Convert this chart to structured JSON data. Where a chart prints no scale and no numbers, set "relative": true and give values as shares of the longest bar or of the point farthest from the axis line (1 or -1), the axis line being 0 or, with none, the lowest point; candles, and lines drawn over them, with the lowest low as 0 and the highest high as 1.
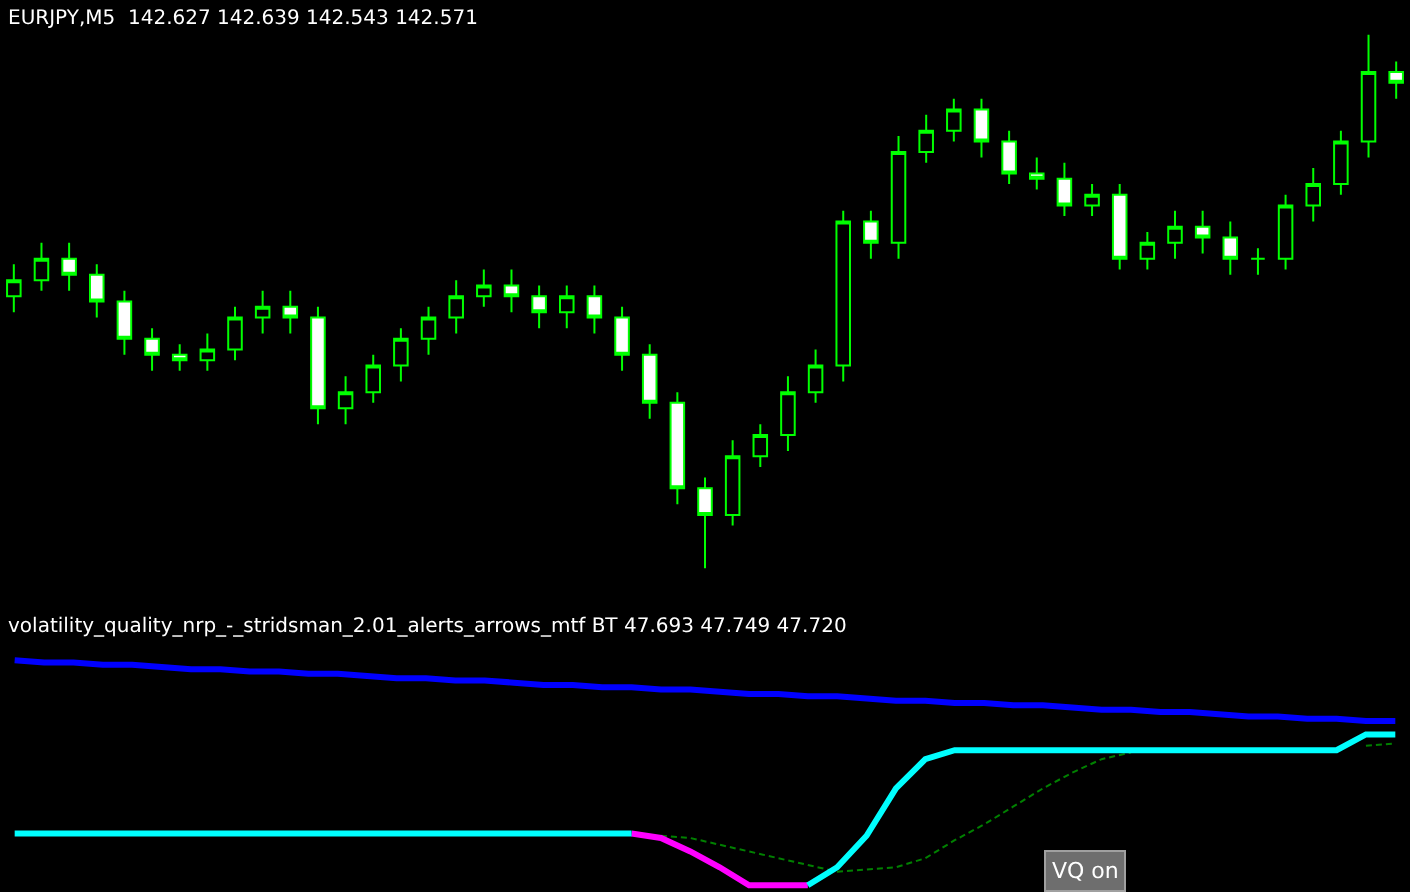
{
  "chart_data": [
    {
      "type": "candlestick",
      "title": "EURJPY,M5  142.627 142.639 142.543 142.571",
      "relative": true,
      "legend": false,
      "color": "#00ff00",
      "categories": [
        null,
        null,
        null,
        null,
        null,
        null,
        null,
        null,
        null,
        null,
        null,
        null,
        null,
        null,
        null,
        null,
        null,
        null,
        null,
        null,
        null,
        null,
        null,
        null,
        null,
        null,
        null,
        null,
        null,
        null,
        null,
        null,
        null,
        null,
        null,
        null,
        null,
        null,
        null,
        null,
        null,
        null,
        null,
        null,
        null,
        null,
        null,
        null,
        null,
        null,
        null
      ],
      "ohlc": [
        [
          0.51,
          0.57,
          0.48,
          0.54
        ],
        [
          0.54,
          0.61,
          0.52,
          0.58
        ],
        [
          0.58,
          0.61,
          0.52,
          0.55
        ],
        [
          0.55,
          0.57,
          0.47,
          0.5
        ],
        [
          0.5,
          0.52,
          0.4,
          0.43
        ],
        [
          0.43,
          0.45,
          0.37,
          0.4
        ],
        [
          0.4,
          0.42,
          0.37,
          0.39
        ],
        [
          0.39,
          0.44,
          0.37,
          0.41
        ],
        [
          0.41,
          0.49,
          0.39,
          0.47
        ],
        [
          0.47,
          0.52,
          0.44,
          0.49
        ],
        [
          0.49,
          0.52,
          0.44,
          0.47
        ],
        [
          0.47,
          0.49,
          0.27,
          0.3
        ],
        [
          0.3,
          0.36,
          0.27,
          0.33
        ],
        [
          0.33,
          0.4,
          0.31,
          0.38
        ],
        [
          0.38,
          0.45,
          0.35,
          0.43
        ],
        [
          0.43,
          0.49,
          0.4,
          0.47
        ],
        [
          0.47,
          0.54,
          0.44,
          0.51
        ],
        [
          0.51,
          0.56,
          0.49,
          0.53
        ],
        [
          0.53,
          0.56,
          0.48,
          0.51
        ],
        [
          0.51,
          0.53,
          0.45,
          0.48
        ],
        [
          0.48,
          0.53,
          0.45,
          0.51
        ],
        [
          0.51,
          0.53,
          0.44,
          0.47
        ],
        [
          0.47,
          0.49,
          0.37,
          0.4
        ],
        [
          0.4,
          0.42,
          0.28,
          0.31
        ],
        [
          0.31,
          0.33,
          0.12,
          0.15
        ],
        [
          0.15,
          0.17,
          0,
          0.1
        ],
        [
          0.1,
          0.24,
          0.08,
          0.21
        ],
        [
          0.21,
          0.27,
          0.19,
          0.25
        ],
        [
          0.25,
          0.36,
          0.22,
          0.33
        ],
        [
          0.33,
          0.41,
          0.31,
          0.38
        ],
        [
          0.38,
          0.67,
          0.35,
          0.65
        ],
        [
          0.65,
          0.67,
          0.58,
          0.61
        ],
        [
          0.61,
          0.81,
          0.58,
          0.78
        ],
        [
          0.78,
          0.85,
          0.76,
          0.82
        ],
        [
          0.82,
          0.88,
          0.8,
          0.86
        ],
        [
          0.86,
          0.88,
          0.77,
          0.8
        ],
        [
          0.8,
          0.82,
          0.72,
          0.74
        ],
        [
          0.74,
          0.77,
          0.71,
          0.73
        ],
        [
          0.73,
          0.76,
          0.66,
          0.68
        ],
        [
          0.68,
          0.72,
          0.66,
          0.7
        ],
        [
          0.7,
          0.72,
          0.56,
          0.58
        ],
        [
          0.58,
          0.63,
          0.56,
          0.61
        ],
        [
          0.61,
          0.67,
          0.58,
          0.64
        ],
        [
          0.64,
          0.67,
          0.59,
          0.62
        ],
        [
          0.62,
          0.65,
          0.55,
          0.58
        ],
        [
          0.58,
          0.6,
          0.55,
          0.58
        ],
        [
          0.58,
          0.7,
          0.56,
          0.68
        ],
        [
          0.68,
          0.75,
          0.65,
          0.72
        ],
        [
          0.72,
          0.82,
          0.7,
          0.8
        ],
        [
          0.8,
          1,
          0.77,
          0.93
        ],
        [
          0.93,
          0.95,
          0.88,
          0.91
        ]
      ]
    },
    {
      "type": "line",
      "title": "volatility_quality_nrp_-_stridsman_2.01_alerts_arrows_mtf BT 47.693 47.749 47.720",
      "relative": true,
      "legend": false,
      "marker": "none",
      "annotations": [
        "VQ on"
      ],
      "categories": [
        null,
        null,
        null,
        null,
        null,
        null,
        null,
        null,
        null,
        null,
        null,
        null,
        null,
        null,
        null,
        null,
        null,
        null,
        null,
        null,
        null,
        null,
        null,
        null,
        null,
        null,
        null,
        null,
        null,
        null,
        null,
        null,
        null,
        null,
        null,
        null,
        null,
        null,
        null,
        null,
        null,
        null,
        null,
        null,
        null,
        null,
        null,
        null
      ],
      "series": [
        {
          "color": "#0000ff",
          "values": [
            1.0,
            0.99,
            0.99,
            0.98,
            0.98,
            0.97,
            0.96,
            0.96,
            0.95,
            0.95,
            0.94,
            0.94,
            0.93,
            0.92,
            0.92,
            0.91,
            0.91,
            0.9,
            0.89,
            0.89,
            0.88,
            0.88,
            0.87,
            0.87,
            0.86,
            0.85,
            0.85,
            0.84,
            0.84,
            0.83,
            0.82,
            0.82,
            0.81,
            0.81,
            0.8,
            0.8,
            0.79,
            0.78,
            0.78,
            0.77,
            0.77,
            0.76,
            0.75,
            0.75,
            0.74,
            0.74,
            0.73,
            0.73
          ]
        },
        {
          "color": "#008000",
          "line_style": "dashed",
          "values": [
            null,
            null,
            null,
            null,
            null,
            null,
            null,
            null,
            null,
            null,
            null,
            null,
            null,
            null,
            null,
            null,
            null,
            null,
            null,
            null,
            null,
            null,
            0.22,
            0.21,
            0.18,
            0.15,
            0.12,
            0.09,
            0.06,
            0.07,
            0.08,
            0.12,
            0.2,
            0.27,
            0.35,
            0.43,
            0.5,
            0.56,
            0.59,
            null,
            null,
            null,
            null,
            null,
            null,
            null,
            0.62,
            0.63
          ]
        },
        {
          "color": "#ff00ff",
          "values": [
            null,
            null,
            null,
            null,
            null,
            null,
            null,
            null,
            null,
            null,
            null,
            null,
            null,
            null,
            null,
            null,
            null,
            null,
            null,
            null,
            null,
            0.23,
            0.21,
            0.15,
            0.08,
            0,
            0,
            0,
            null,
            null,
            null,
            null,
            null,
            null,
            null,
            null,
            null,
            null,
            null,
            null,
            null,
            null,
            null,
            null,
            null,
            null,
            null,
            null
          ]
        },
        {
          "color": "#00ffff",
          "values": [
            0.23,
            0.23,
            0.23,
            0.23,
            0.23,
            0.23,
            0.23,
            0.23,
            0.23,
            0.23,
            0.23,
            0.23,
            0.23,
            0.23,
            0.23,
            0.23,
            0.23,
            0.23,
            0.23,
            0.23,
            0.23,
            0.23,
            null,
            null,
            null,
            null,
            null,
            0,
            0.08,
            0.22,
            0.43,
            0.56,
            0.6,
            0.6,
            0.6,
            0.6,
            0.6,
            0.6,
            0.6,
            0.6,
            0.6,
            0.6,
            0.6,
            0.6,
            0.6,
            0.6,
            0.67,
            0.67
          ]
        }
      ]
    }
  ]
}
